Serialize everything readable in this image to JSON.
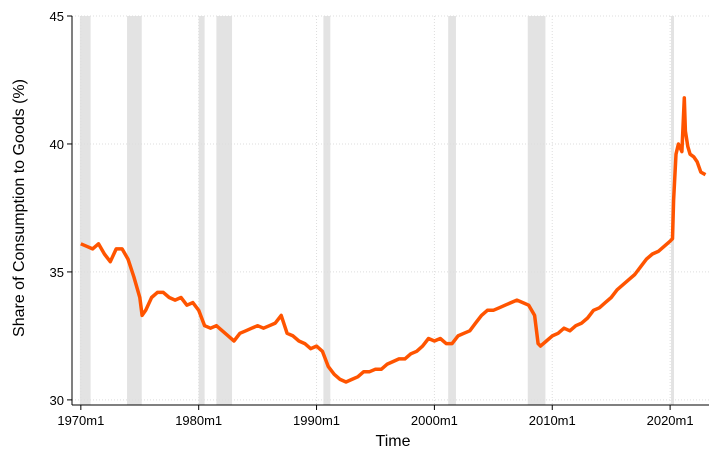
{
  "chart_data": {
    "type": "line",
    "x_label": "Time",
    "y_label": "Share of Consumption to Goods (%)",
    "xlim": [
      1969.25,
      2023.3
    ],
    "ylim": [
      29.8,
      45
    ],
    "xticks": [
      {
        "value": 1970,
        "label": "1970m1"
      },
      {
        "value": 1980,
        "label": "1980m1"
      },
      {
        "value": 1990,
        "label": "1990m1"
      },
      {
        "value": 2000,
        "label": "2000m1"
      },
      {
        "value": 2010,
        "label": "2010m1"
      },
      {
        "value": 2020,
        "label": "2020m1"
      }
    ],
    "yticks": [
      30,
      35,
      40,
      45
    ],
    "grid": true,
    "shaded_regions": [
      [
        1969.92,
        1970.83
      ],
      [
        1973.92,
        1975.17
      ],
      [
        1980.0,
        1980.5
      ],
      [
        1981.5,
        1982.83
      ],
      [
        1990.58,
        1991.17
      ],
      [
        2001.17,
        2001.83
      ],
      [
        2007.92,
        2009.42
      ],
      [
        2020.08,
        2020.33
      ]
    ],
    "shade_color": "#e3e3e3",
    "series": [
      {
        "color": "#ff5400",
        "x": [
          1970,
          1970.5,
          1971,
          1971.5,
          1972,
          1972.5,
          1973,
          1973.5,
          1974,
          1974.5,
          1975,
          1975.2,
          1975.5,
          1976,
          1976.5,
          1977,
          1977.5,
          1978,
          1978.5,
          1979,
          1979.5,
          1980,
          1980.5,
          1981,
          1981.5,
          1982,
          1982.5,
          1983,
          1983.5,
          1984,
          1984.5,
          1985,
          1985.5,
          1986,
          1986.5,
          1987,
          1987.5,
          1988,
          1988.5,
          1989,
          1989.5,
          1990,
          1990.5,
          1991,
          1991.5,
          1992,
          1992.5,
          1993,
          1993.5,
          1994,
          1994.5,
          1995,
          1995.5,
          1996,
          1996.5,
          1997,
          1997.5,
          1998,
          1998.5,
          1999,
          1999.5,
          2000,
          2000.5,
          2001,
          2001.5,
          2002,
          2002.5,
          2003,
          2003.5,
          2004,
          2004.5,
          2005,
          2005.5,
          2006,
          2006.5,
          2007,
          2007.5,
          2008,
          2008.5,
          2008.8,
          2009,
          2009.5,
          2010,
          2010.5,
          2011,
          2011.5,
          2012,
          2012.5,
          2013,
          2013.5,
          2014,
          2014.5,
          2015,
          2015.5,
          2016,
          2016.5,
          2017,
          2017.5,
          2018,
          2018.5,
          2019,
          2019.5,
          2020,
          2020.2,
          2020.3,
          2020.5,
          2020.7,
          2021,
          2021.2,
          2021.3,
          2021.5,
          2021.7,
          2022,
          2022.3,
          2022.6,
          2023
        ],
        "values": [
          36.1,
          36.0,
          35.9,
          36.1,
          35.7,
          35.4,
          35.9,
          35.9,
          35.5,
          34.8,
          34.0,
          33.3,
          33.5,
          34.0,
          34.2,
          34.2,
          34.0,
          33.9,
          34.0,
          33.7,
          33.8,
          33.5,
          32.9,
          32.8,
          32.9,
          32.7,
          32.5,
          32.3,
          32.6,
          32.7,
          32.8,
          32.9,
          32.8,
          32.9,
          33.0,
          33.3,
          32.6,
          32.5,
          32.3,
          32.2,
          32.0,
          32.1,
          31.9,
          31.3,
          31.0,
          30.8,
          30.7,
          30.8,
          30.9,
          31.1,
          31.1,
          31.2,
          31.2,
          31.4,
          31.5,
          31.6,
          31.6,
          31.8,
          31.9,
          32.1,
          32.4,
          32.3,
          32.4,
          32.2,
          32.2,
          32.5,
          32.6,
          32.7,
          33.0,
          33.3,
          33.5,
          33.5,
          33.6,
          33.7,
          33.8,
          33.9,
          33.8,
          33.7,
          33.3,
          32.2,
          32.1,
          32.3,
          32.5,
          32.6,
          32.8,
          32.7,
          32.9,
          33.0,
          33.2,
          33.5,
          33.6,
          33.8,
          34.0,
          34.3,
          34.5,
          34.7,
          34.9,
          35.2,
          35.5,
          35.7,
          35.8,
          36.0,
          36.2,
          36.3,
          37.8,
          39.6,
          40.0,
          39.7,
          41.8,
          40.5,
          39.9,
          39.6,
          39.5,
          39.3,
          38.9,
          38.8
        ]
      }
    ]
  }
}
